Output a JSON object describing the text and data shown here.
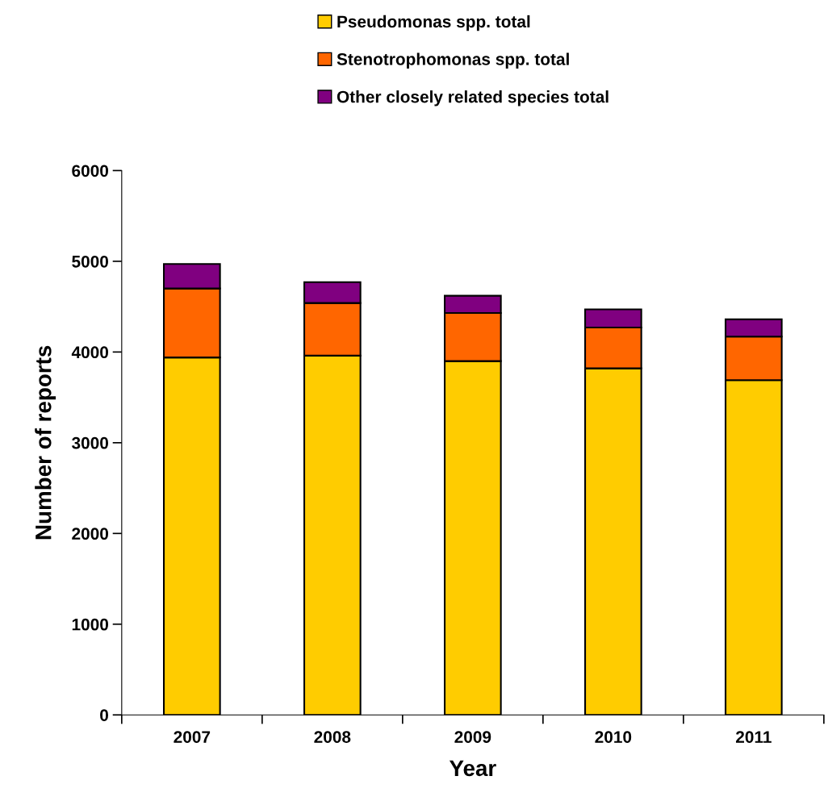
{
  "chart_data": {
    "type": "bar",
    "stacked": true,
    "xlabel": "Year",
    "ylabel": "Number of reports",
    "categories": [
      "2007",
      "2008",
      "2009",
      "2010",
      "2011"
    ],
    "series": [
      {
        "name": "Pseudomonas spp. total",
        "color": "#ffcc00",
        "values": [
          3940,
          3960,
          3900,
          3820,
          3690
        ]
      },
      {
        "name": "Stenotrophomonas spp. total",
        "color": "#ff6600",
        "values": [
          760,
          580,
          530,
          450,
          480
        ]
      },
      {
        "name": "Other closely related species total",
        "color": "#800080",
        "values": [
          270,
          230,
          190,
          200,
          190
        ]
      }
    ],
    "ylim": [
      0,
      6000
    ],
    "yticks": [
      0,
      1000,
      2000,
      3000,
      4000,
      5000,
      6000
    ],
    "grid": false,
    "legend": "top"
  }
}
